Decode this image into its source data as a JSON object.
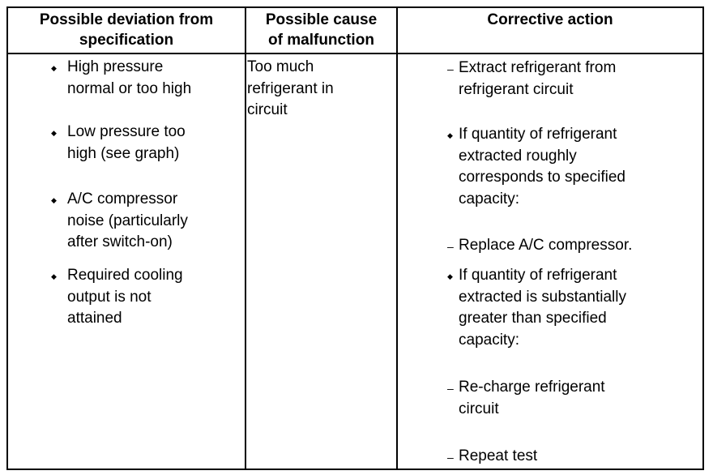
{
  "headers": [
    "Possible deviation from\nspecification",
    "Possible cause\nof malfunction",
    "Corrective action"
  ],
  "deviations": [
    {
      "marker": "diamond",
      "text": "High pressure\nnormal or too high"
    },
    {
      "marker": "diamond",
      "text": "Low pressure too\nhigh (see graph)"
    },
    {
      "marker": "diamond",
      "text": "A/C compressor\nnoise (particularly\nafter switch-on)"
    },
    {
      "marker": "diamond",
      "text": "Required cooling\noutput is not\nattained"
    }
  ],
  "cause": "Too much\nrefrigerant in\ncircuit",
  "actions": [
    {
      "marker": "dash",
      "text": "Extract refrigerant from\nrefrigerant circuit"
    },
    {
      "marker": "diamond",
      "text": "If quantity of refrigerant\nextracted roughly\ncorresponds to specified\ncapacity:"
    },
    {
      "marker": "dash",
      "text": "Replace A/C compressor."
    },
    {
      "marker": "diamond",
      "text": "If quantity of refrigerant\nextracted is substantially\ngreater than specified\ncapacity:"
    },
    {
      "marker": "dash",
      "text": "Re-charge refrigerant\ncircuit"
    },
    {
      "marker": "dash",
      "text": "Repeat test"
    }
  ]
}
